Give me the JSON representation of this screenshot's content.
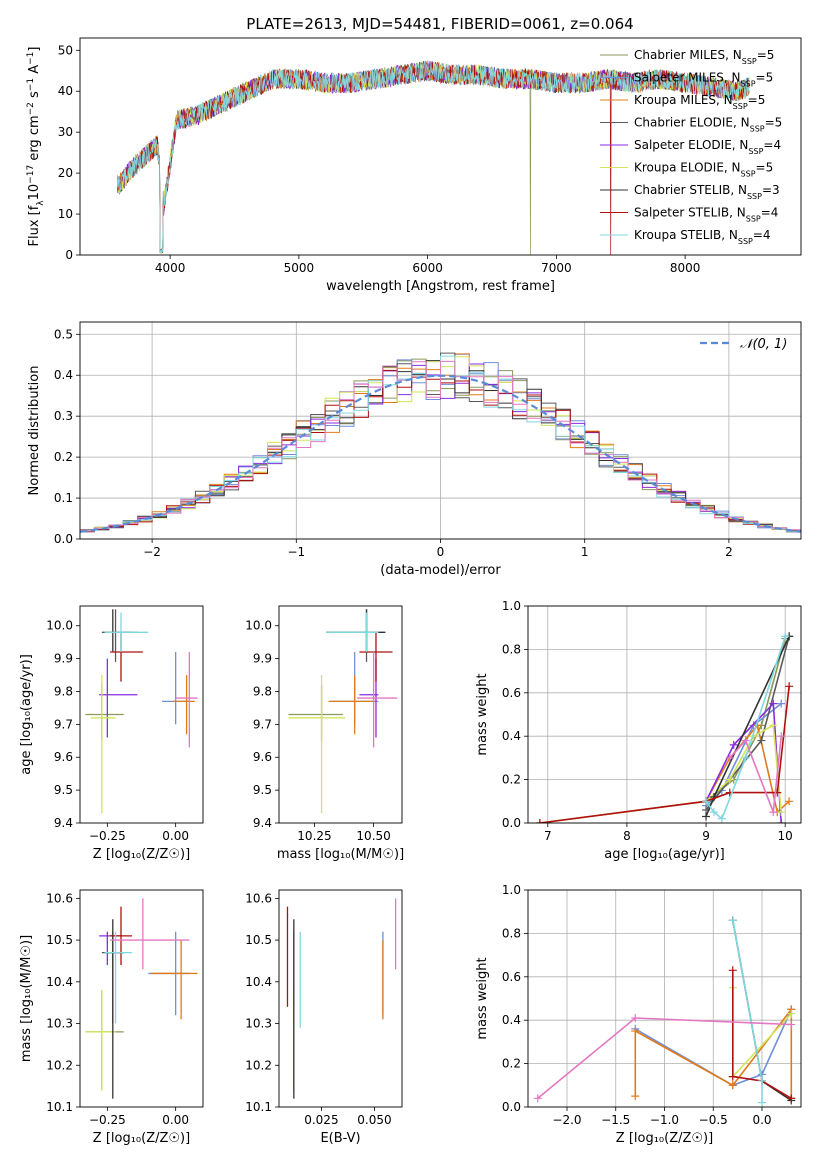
{
  "title": "PLATE=2613, MJD=54481, FIBERID=0061, z=0.064",
  "colors": [
    "#8a9a5b",
    "#6f8fd8",
    "#e07b1a",
    "#5a5a5a",
    "#8a2be2",
    "#d4e35a",
    "#333333",
    "#b01010",
    "#80d8e0",
    "#e377c2"
  ],
  "chart_data": [
    {
      "id": "spectrum",
      "type": "line",
      "xlabel": "wavelength [Angstrom, rest frame]",
      "ylabel_parts": [
        "Flux [f",
        "λ",
        "10",
        "−17",
        " erg cm",
        "−2",
        " s",
        "−1",
        " A",
        "−1",
        "]"
      ],
      "xlim": [
        3300,
        8900
      ],
      "ylim": [
        0,
        53
      ],
      "xticks": [
        4000,
        5000,
        6000,
        7000,
        8000
      ],
      "yticks": [
        0,
        10,
        20,
        30,
        40,
        50
      ],
      "continuum_x": [
        3600,
        3700,
        3800,
        3900,
        3950,
        4050,
        4200,
        4400,
        4600,
        4800,
        5000,
        5200,
        5400,
        5600,
        5800,
        6000,
        6200,
        6400,
        6600,
        6800,
        7000,
        7200,
        7400,
        7600,
        7800,
        8000,
        8200,
        8400,
        8500
      ],
      "continuum_y": [
        17,
        21,
        24,
        27,
        12,
        33,
        34,
        37,
        40,
        43,
        43,
        42,
        42,
        43,
        44,
        45,
        44,
        44,
        43,
        43,
        42,
        42,
        43,
        42,
        43,
        42,
        41,
        40,
        41
      ],
      "legend": [
        {
          "imf": "Chabrier MILES",
          "n": "5"
        },
        {
          "imf": "Salpeter MILES",
          "n": "5"
        },
        {
          "imf": "Kroupa MILES",
          "n": "5"
        },
        {
          "imf": "Chabrier ELODIE",
          "n": "5"
        },
        {
          "imf": "Salpeter ELODIE",
          "n": "4"
        },
        {
          "imf": "Kroupa ELODIE",
          "n": "5"
        },
        {
          "imf": "Chabrier STELIB",
          "n": "3"
        },
        {
          "imf": "Salpeter STELIB",
          "n": "4"
        },
        {
          "imf": "Kroupa STELIB",
          "n": "4"
        }
      ],
      "legend_sub": "SSP",
      "legend_prefix": "N",
      "legend_position": "upper-right"
    },
    {
      "id": "residuals",
      "type": "histogram",
      "xlabel": "(data-model)/error",
      "ylabel": "Normed distribution",
      "xlim": [
        -2.5,
        2.5
      ],
      "ylim": [
        0,
        0.53
      ],
      "xticks": [
        -2,
        -1,
        0,
        1,
        2
      ],
      "xtick_labels": [
        "−2",
        "−1",
        "0",
        "1",
        "2"
      ],
      "yticks": [
        0,
        0.1,
        0.2,
        0.3,
        0.4,
        0.5
      ],
      "ytick_labels": [
        "0.0",
        "0.1",
        "0.2",
        "0.3",
        "0.4",
        "0.5"
      ],
      "bin_width": 0.1,
      "legend": "𝒩(0, 1)",
      "legend_position": "upper-right",
      "grid": true
    },
    {
      "id": "age-vs-Z",
      "type": "errorbar",
      "xlabel": "Z [log₁₀(Z/Z☉)]",
      "ylabel": "age  [log₁₀(age/yr)]",
      "xlim": [
        -0.35,
        0.1
      ],
      "ylim": [
        9.4,
        10.06
      ],
      "xticks": [
        -0.25,
        0.0
      ],
      "xtick_labels": [
        "−0.25",
        "0.00"
      ],
      "yticks": [
        9.4,
        9.5,
        9.6,
        9.7,
        9.8,
        9.9,
        10.0
      ],
      "ytick_labels": [
        "9.4",
        "9.5",
        "9.6",
        "9.7",
        "9.8",
        "9.9",
        "10.0"
      ],
      "points": [
        {
          "s": 0,
          "x": -0.27,
          "xe": [
            -0.33,
            -0.19
          ],
          "y": 9.73,
          "ye": [
            9.65,
            9.82
          ]
        },
        {
          "s": 1,
          "x": 0.0,
          "xe": [
            -0.05,
            0.05
          ],
          "y": 9.77,
          "ye": [
            9.7,
            9.92
          ]
        },
        {
          "s": 2,
          "x": 0.04,
          "xe": [
            -0.01,
            0.07
          ],
          "y": 9.77,
          "ye": [
            9.67,
            9.85
          ]
        },
        {
          "s": 3,
          "x": -0.22,
          "xe": [
            -0.27,
            -0.14
          ],
          "y": 9.98,
          "ye": [
            9.89,
            10.05
          ]
        },
        {
          "s": 4,
          "x": -0.25,
          "xe": [
            -0.28,
            -0.14
          ],
          "y": 9.79,
          "ye": [
            9.66,
            9.9
          ]
        },
        {
          "s": 5,
          "x": -0.27,
          "xe": [
            -0.31,
            -0.22
          ],
          "y": 9.72,
          "ye": [
            9.43,
            9.85
          ]
        },
        {
          "s": 6,
          "x": -0.23,
          "xe": [
            -0.26,
            -0.16
          ],
          "y": 9.98,
          "ye": [
            9.92,
            10.05
          ]
        },
        {
          "s": 7,
          "x": -0.2,
          "xe": [
            -0.24,
            -0.12
          ],
          "y": 9.92,
          "ye": [
            9.83,
            9.98
          ]
        },
        {
          "s": 8,
          "x": -0.2,
          "xe": [
            -0.26,
            -0.1
          ],
          "y": 9.98,
          "ye": [
            9.92,
            10.04
          ]
        },
        {
          "s": 9,
          "x": 0.05,
          "xe": [
            0.0,
            0.08
          ],
          "y": 9.78,
          "ye": [
            9.63,
            9.92
          ]
        }
      ]
    },
    {
      "id": "age-vs-mass",
      "type": "errorbar",
      "xlabel": "mass [log₁₀(M/M☉)]",
      "ylabel": "",
      "xlim": [
        10.1,
        10.62
      ],
      "ylim": [
        9.4,
        10.06
      ],
      "xticks": [
        10.25,
        10.5
      ],
      "xtick_labels": [
        "10.25",
        "10.50"
      ],
      "yticks": [
        9.4,
        9.5,
        9.6,
        9.7,
        9.8,
        9.9,
        10.0
      ],
      "ytick_labels": [
        "9.4",
        "9.5",
        "9.6",
        "9.7",
        "9.8",
        "9.9",
        "10.0"
      ],
      "points": [
        {
          "s": 0,
          "x": 10.28,
          "xe": [
            10.14,
            10.37
          ],
          "y": 9.73,
          "ye": [
            9.65,
            9.82
          ]
        },
        {
          "s": 1,
          "x": 10.42,
          "xe": [
            10.32,
            10.52
          ],
          "y": 9.77,
          "ye": [
            9.7,
            9.92
          ]
        },
        {
          "s": 2,
          "x": 10.42,
          "xe": [
            10.31,
            10.5
          ],
          "y": 9.77,
          "ye": [
            9.67,
            9.85
          ]
        },
        {
          "s": 3,
          "x": 10.47,
          "xe": [
            10.3,
            10.52
          ],
          "y": 9.98,
          "ye": [
            9.89,
            10.05
          ]
        },
        {
          "s": 4,
          "x": 10.51,
          "xe": [
            10.44,
            10.52
          ],
          "y": 9.79,
          "ye": [
            9.66,
            9.9
          ]
        },
        {
          "s": 5,
          "x": 10.28,
          "xe": [
            10.14,
            10.38
          ],
          "y": 9.72,
          "ye": [
            9.43,
            9.85
          ]
        },
        {
          "s": 6,
          "x": 10.47,
          "xe": [
            10.3,
            10.55
          ],
          "y": 9.98,
          "ye": [
            9.92,
            10.05
          ]
        },
        {
          "s": 7,
          "x": 10.51,
          "xe": [
            10.44,
            10.58
          ],
          "y": 9.92,
          "ye": [
            9.83,
            9.98
          ]
        },
        {
          "s": 8,
          "x": 10.47,
          "xe": [
            10.3,
            10.52
          ],
          "y": 9.98,
          "ye": [
            9.92,
            10.04
          ]
        },
        {
          "s": 9,
          "x": 10.5,
          "xe": [
            10.43,
            10.6
          ],
          "y": 9.78,
          "ye": [
            9.63,
            9.92
          ]
        }
      ]
    },
    {
      "id": "weight-vs-age",
      "type": "line",
      "xlabel": "age  [log₁₀(age/yr)]",
      "ylabel": "mass weight",
      "xlim": [
        6.75,
        10.2
      ],
      "ylim": [
        0,
        1.0
      ],
      "xticks": [
        7,
        8,
        9,
        10
      ],
      "xtick_labels": [
        "7",
        "8",
        "9",
        "10"
      ],
      "yticks": [
        0,
        0.2,
        0.4,
        0.6,
        0.8,
        1.0
      ],
      "ytick_labels": [
        "0.0",
        "0.2",
        "0.4",
        "0.6",
        "0.8",
        "1.0"
      ],
      "grid": true,
      "series": [
        {
          "s": 0,
          "x": [
            6.9,
            9.0,
            9.35,
            9.7,
            10.0
          ],
          "y": [
            0.0,
            0.1,
            0.2,
            0.45,
            0.85
          ]
        },
        {
          "s": 1,
          "x": [
            9.0,
            9.2,
            9.6,
            9.95
          ],
          "y": [
            0.08,
            0.15,
            0.45,
            0.55
          ]
        },
        {
          "s": 2,
          "x": [
            9.0,
            9.3,
            9.65,
            9.9,
            10.05
          ],
          "y": [
            0.1,
            0.3,
            0.45,
            0.05,
            0.1
          ]
        },
        {
          "s": 3,
          "x": [
            9.0,
            9.3,
            9.7,
            10.05
          ],
          "y": [
            0.06,
            0.2,
            0.38,
            0.86
          ]
        },
        {
          "s": 4,
          "x": [
            9.0,
            9.35,
            9.85,
            9.95
          ],
          "y": [
            0.1,
            0.36,
            0.55,
            0.0
          ]
        },
        {
          "s": 5,
          "x": [
            6.9,
            9.0,
            9.3,
            9.6,
            9.85,
            9.95
          ],
          "y": [
            0.0,
            0.1,
            0.2,
            0.4,
            0.45,
            0.05
          ]
        },
        {
          "s": 6,
          "x": [
            9.0,
            9.1,
            10.05
          ],
          "y": [
            0.03,
            0.12,
            0.86
          ]
        },
        {
          "s": 7,
          "x": [
            6.9,
            9.0,
            9.3,
            9.9,
            10.05
          ],
          "y": [
            0.0,
            0.1,
            0.14,
            0.14,
            0.63
          ]
        },
        {
          "s": 8,
          "x": [
            9.0,
            9.1,
            9.2,
            9.5,
            10.0
          ],
          "y": [
            0.1,
            0.05,
            0.02,
            0.3,
            0.86
          ]
        },
        {
          "s": 9,
          "x": [
            9.3,
            9.5,
            9.85,
            9.95
          ],
          "y": [
            0.3,
            0.38,
            0.05,
            0.4
          ]
        }
      ]
    },
    {
      "id": "mass-vs-Z",
      "type": "errorbar",
      "xlabel": "Z [log₁₀(Z/Z☉)]",
      "ylabel": "mass [log₁₀(M/M☉)]",
      "xlim": [
        -0.35,
        0.1
      ],
      "ylim": [
        10.1,
        10.62
      ],
      "xticks": [
        -0.25,
        0.0
      ],
      "xtick_labels": [
        "−0.25",
        "0.00"
      ],
      "yticks": [
        10.1,
        10.2,
        10.3,
        10.4,
        10.5,
        10.6
      ],
      "ytick_labels": [
        "10.1",
        "10.2",
        "10.3",
        "10.4",
        "10.5",
        "10.6"
      ],
      "points": [
        {
          "s": 0,
          "x": -0.27,
          "xe": [
            -0.33,
            -0.19
          ],
          "y": 10.28,
          "ye": [
            10.14,
            10.38
          ]
        },
        {
          "s": 1,
          "x": 0.0,
          "xe": [
            -0.1,
            0.05
          ],
          "y": 10.42,
          "ye": [
            10.32,
            10.52
          ]
        },
        {
          "s": 2,
          "x": 0.02,
          "xe": [
            -0.09,
            0.08
          ],
          "y": 10.42,
          "ye": [
            10.31,
            10.5
          ]
        },
        {
          "s": 3,
          "x": -0.23,
          "xe": [
            -0.27,
            -0.19
          ],
          "y": 10.47,
          "ye": [
            10.3,
            10.52
          ]
        },
        {
          "s": 4,
          "x": -0.25,
          "xe": [
            -0.28,
            -0.2
          ],
          "y": 10.51,
          "ye": [
            10.44,
            10.52
          ]
        },
        {
          "s": 5,
          "x": -0.27,
          "xe": [
            -0.33,
            -0.22
          ],
          "y": 10.28,
          "ye": [
            10.14,
            10.38
          ]
        },
        {
          "s": 6,
          "x": -0.23,
          "xe": [
            -0.26,
            -0.19
          ],
          "y": 10.47,
          "ye": [
            10.12,
            10.55
          ]
        },
        {
          "s": 7,
          "x": -0.2,
          "xe": [
            -0.24,
            -0.16
          ],
          "y": 10.51,
          "ye": [
            10.44,
            10.58
          ]
        },
        {
          "s": 8,
          "x": -0.22,
          "xe": [
            -0.26,
            -0.16
          ],
          "y": 10.47,
          "ye": [
            10.3,
            10.52
          ]
        },
        {
          "s": 9,
          "x": -0.12,
          "xe": [
            -0.24,
            0.05
          ],
          "y": 10.5,
          "ye": [
            10.43,
            10.6
          ]
        }
      ]
    },
    {
      "id": "mass-vs-EBV",
      "type": "errorbar",
      "xlabel": "E(B-V)",
      "ylabel": "",
      "xlim": [
        0.005,
        0.063
      ],
      "ylim": [
        10.1,
        10.62
      ],
      "xticks": [
        0.025,
        0.05
      ],
      "xtick_labels": [
        "0.025",
        "0.050"
      ],
      "yticks": [
        10.1,
        10.2,
        10.3,
        10.4,
        10.5,
        10.6
      ],
      "ytick_labels": [
        "10.1",
        "10.2",
        "10.3",
        "10.4",
        "10.5",
        "10.6"
      ],
      "points": [
        {
          "s": 0,
          "x": 0.012,
          "xe": [
            0.012,
            0.012
          ],
          "y": 10.28,
          "ye": [
            10.14,
            10.38
          ]
        },
        {
          "s": 1,
          "x": 0.054,
          "xe": [
            0.054,
            0.054
          ],
          "y": 10.42,
          "ye": [
            10.32,
            10.52
          ]
        },
        {
          "s": 2,
          "x": 0.054,
          "xe": [
            0.054,
            0.054
          ],
          "y": 10.42,
          "ye": [
            10.31,
            10.5
          ]
        },
        {
          "s": 3,
          "x": 0.012,
          "xe": [
            0.012,
            0.012
          ],
          "y": 10.47,
          "ye": [
            10.3,
            10.52
          ]
        },
        {
          "s": 5,
          "x": 0.012,
          "xe": [
            0.012,
            0.012
          ],
          "y": 10.28,
          "ye": [
            10.14,
            10.38
          ]
        },
        {
          "s": 6,
          "x": 0.012,
          "xe": [
            0.012,
            0.012
          ],
          "y": 10.47,
          "ye": [
            10.12,
            10.55
          ]
        },
        {
          "s": 7,
          "x": 0.009,
          "xe": [
            0.009,
            0.009
          ],
          "y": 10.47,
          "ye": [
            10.34,
            10.58
          ]
        },
        {
          "s": 8,
          "x": 0.015,
          "xe": [
            0.015,
            0.015
          ],
          "y": 10.42,
          "ye": [
            10.29,
            10.52
          ]
        },
        {
          "s": 9,
          "x": 0.06,
          "xe": [
            0.06,
            0.06
          ],
          "y": 10.5,
          "ye": [
            10.43,
            10.6
          ]
        }
      ]
    },
    {
      "id": "weight-vs-Z",
      "type": "line",
      "xlabel": "Z [log₁₀(Z/Z☉)]",
      "ylabel": "mass weight",
      "xlim": [
        -2.4,
        0.4
      ],
      "ylim": [
        0,
        1.0
      ],
      "xticks": [
        -2.0,
        -1.5,
        -1.0,
        -0.5,
        0.0
      ],
      "xtick_labels": [
        "−2.0",
        "−1.5",
        "−1.0",
        "−0.5",
        "0.0"
      ],
      "yticks": [
        0,
        0.2,
        0.4,
        0.6,
        0.8,
        1.0
      ],
      "ytick_labels": [
        "0.0",
        "0.2",
        "0.4",
        "0.6",
        "0.8",
        "1.0"
      ],
      "grid": true,
      "series": [
        {
          "s": 1,
          "x": [
            -1.3,
            -0.3,
            0.0,
            0.3
          ],
          "y": [
            0.36,
            0.1,
            0.15,
            0.45
          ]
        },
        {
          "s": 2,
          "x": [
            -1.3,
            -1.3,
            -0.3,
            0.3,
            0.3
          ],
          "y": [
            0.05,
            0.35,
            0.1,
            0.45,
            0.04
          ]
        },
        {
          "s": 5,
          "x": [
            -0.3,
            -0.3,
            0.3
          ],
          "y": [
            0.55,
            0.14,
            0.43
          ]
        },
        {
          "s": 6,
          "x": [
            -0.3,
            0.0,
            0.3
          ],
          "y": [
            0.86,
            0.12,
            0.03
          ]
        },
        {
          "s": 7,
          "x": [
            -0.3,
            -0.3,
            0.0,
            0.3
          ],
          "y": [
            0.63,
            0.14,
            0.12,
            0.04
          ]
        },
        {
          "s": 8,
          "x": [
            -0.3,
            0.0,
            0.0
          ],
          "y": [
            0.86,
            0.12,
            0.02
          ]
        },
        {
          "s": 9,
          "x": [
            -2.3,
            -1.3,
            0.3
          ],
          "y": [
            0.04,
            0.41,
            0.38
          ]
        }
      ]
    }
  ]
}
